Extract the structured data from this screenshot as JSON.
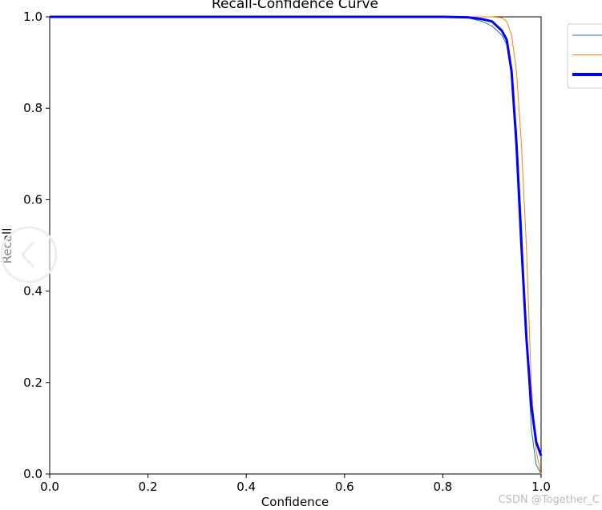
{
  "chart_data": {
    "type": "line",
    "title": "Recall-Confidence Curve",
    "x_label": "Confidence",
    "y_label": "Recall",
    "watermark": "CSDN @Together_C",
    "xlim": [
      0,
      1
    ],
    "ylim": [
      0,
      1
    ],
    "xticks": [
      {
        "value": 0,
        "label": "0.0"
      },
      0.2,
      0.4,
      0.6,
      0.8,
      {
        "value": 1,
        "label": "1.0"
      }
    ],
    "yticks": [
      {
        "value": 0,
        "label": "0.0"
      },
      0.2,
      0.4,
      0.6,
      0.8,
      {
        "value": 1,
        "label": "1.0"
      }
    ],
    "x": [
      0,
      0.8,
      0.85,
      0.88,
      0.9,
      0.92,
      0.93,
      0.94,
      0.95,
      0.96,
      0.97,
      0.98,
      0.99,
      1.0
    ],
    "series": [
      {
        "color": "#1f77b4",
        "width": 1,
        "values": [
          1,
          1,
          0.998,
          0.99,
          0.98,
          0.96,
          0.94,
          0.88,
          0.75,
          0.55,
          0.3,
          0.1,
          0.02,
          0
        ]
      },
      {
        "color": "#ff7f0e",
        "width": 1,
        "values": [
          1,
          1,
          1,
          1,
          1,
          0.998,
          0.99,
          0.96,
          0.88,
          0.72,
          0.5,
          0.2,
          0.05,
          0
        ]
      },
      {
        "color": "#0000ff",
        "width": 3,
        "values": [
          1,
          1,
          0.999,
          0.995,
          0.99,
          0.97,
          0.95,
          0.88,
          0.72,
          0.5,
          0.3,
          0.15,
          0.07,
          0.04
        ]
      }
    ]
  }
}
